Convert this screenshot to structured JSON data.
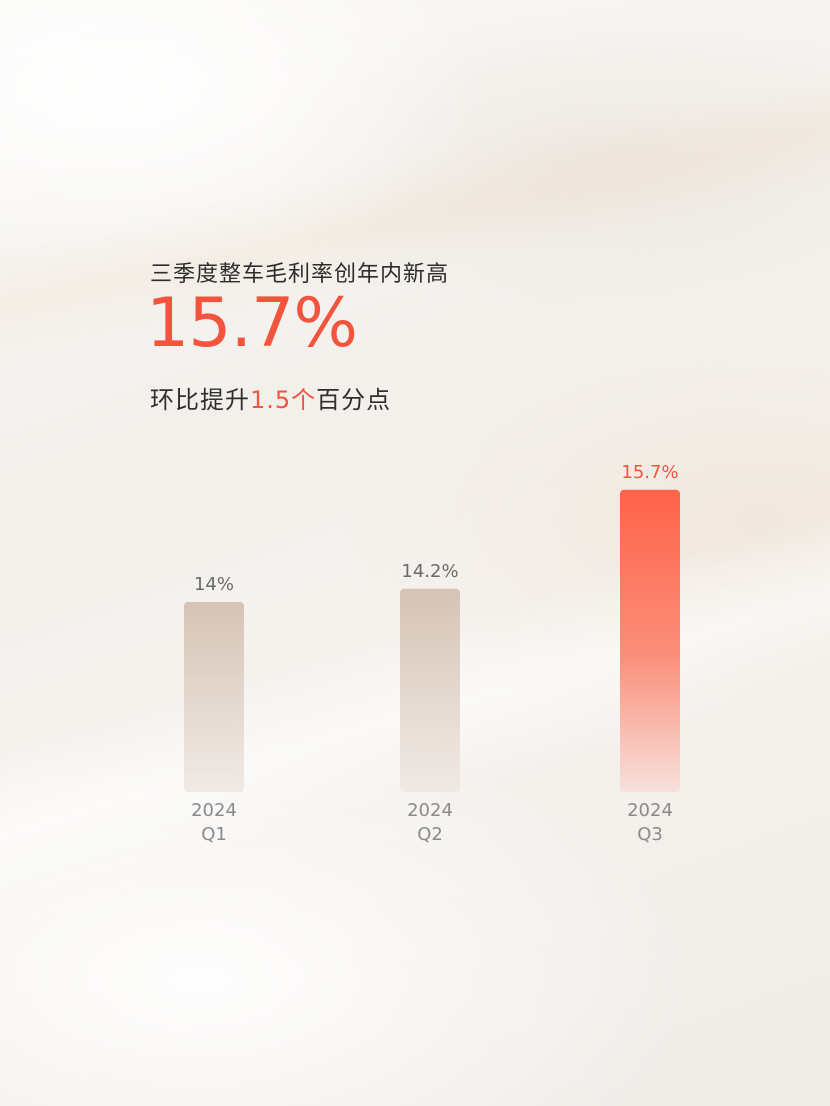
{
  "header": {
    "subtitle": "三季度整车毛利率创年内新高",
    "headline_value": "15.7%",
    "sub_prefix": "环比提升",
    "sub_highlight": "1.5个",
    "sub_suffix": "百分点"
  },
  "colors": {
    "accent": "#f3543e",
    "bar_neutral": "#d7c4b6",
    "bar_highlight": "#ff6a4d",
    "label_gray": "#6a6a6a"
  },
  "chart_data": {
    "type": "bar",
    "categories": [
      "2024 Q1",
      "2024 Q2",
      "2024 Q3"
    ],
    "category_lines": [
      [
        "2024",
        "Q1"
      ],
      [
        "2024",
        "Q2"
      ],
      [
        "2024",
        "Q3"
      ]
    ],
    "values": [
      14.0,
      14.2,
      15.7
    ],
    "value_labels": [
      "14%",
      "14.2%",
      "15.7%"
    ],
    "highlight_index": 2,
    "unit": "%",
    "grid": false
  }
}
